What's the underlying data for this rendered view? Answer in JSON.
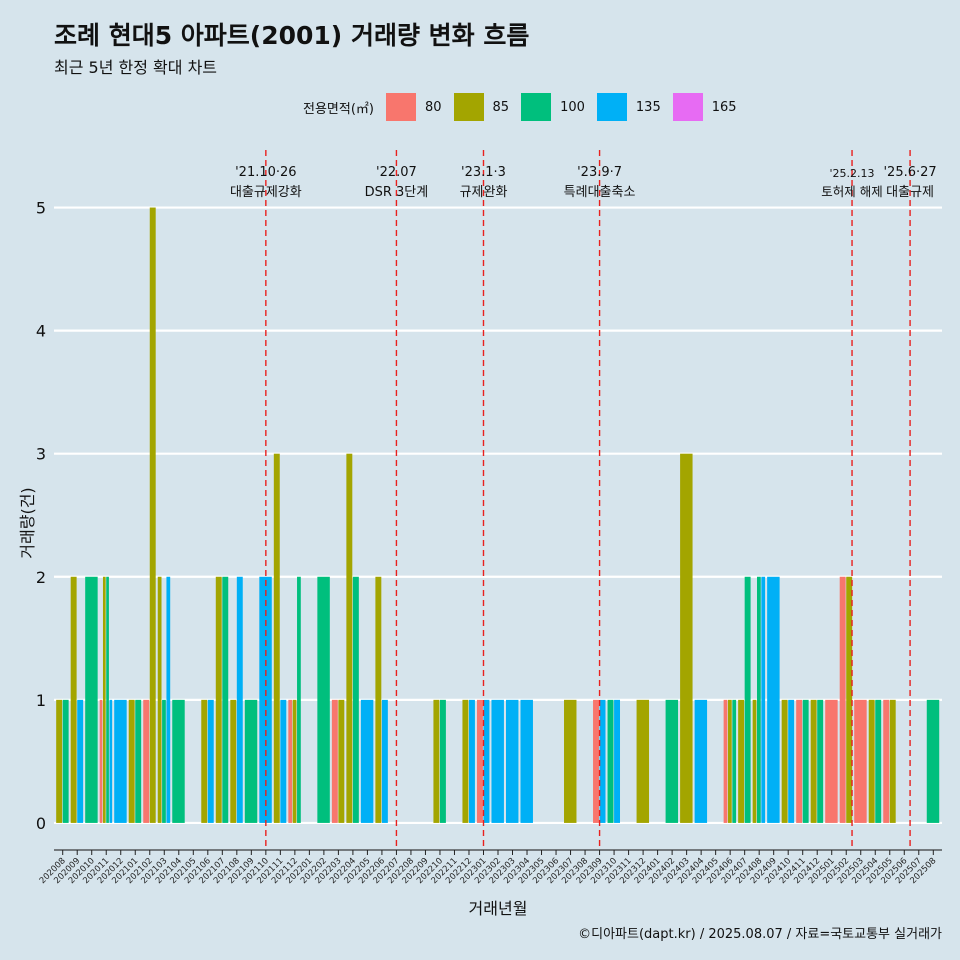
{
  "title": "조례 현대5 아파트(2001) 거래량 변화 흐름",
  "subtitle": "최근 5년 한정 확대 차트",
  "caption": "©디아파트(dapt.kr) / 2025.08.07 / 자료=국토교통부 실거래가",
  "chart_data": {
    "type": "bar",
    "stacked": false,
    "xlabel": "거래년월",
    "ylabel": "거래량(건)",
    "ylim": [
      -0.22,
      5.5
    ],
    "yticks": [
      0,
      1,
      2,
      3,
      4,
      5
    ],
    "legend_title": "전용면적(㎡)",
    "legend_position": "top",
    "categories": [
      "202008",
      "202009",
      "202010",
      "202011",
      "202012",
      "202101",
      "202102",
      "202103",
      "202104",
      "202105",
      "202106",
      "202107",
      "202108",
      "202109",
      "202110",
      "202111",
      "202112",
      "202201",
      "202202",
      "202203",
      "202204",
      "202205",
      "202206",
      "202207",
      "202208",
      "202209",
      "202210",
      "202211",
      "202212",
      "202301",
      "202302",
      "202303",
      "202304",
      "202305",
      "202306",
      "202307",
      "202308",
      "202309",
      "202310",
      "202311",
      "202312",
      "202401",
      "202402",
      "202403",
      "202404",
      "202405",
      "202406",
      "202407",
      "202408",
      "202409",
      "202410",
      "202411",
      "202412",
      "202501",
      "202502",
      "202503",
      "202504",
      "202505",
      "202506",
      "202507",
      "202508"
    ],
    "series": [
      {
        "name": "80",
        "color": "#f8766d",
        "values": [
          0,
          0,
          0,
          1,
          0,
          0,
          1,
          0,
          0,
          0,
          0,
          0,
          0,
          0,
          0,
          0,
          1,
          0,
          0,
          1,
          0,
          0,
          0,
          0,
          0,
          0,
          0,
          0,
          0,
          1,
          0,
          0,
          0,
          0,
          0,
          0,
          0,
          1,
          0,
          0,
          0,
          0,
          0,
          0,
          0,
          0,
          1,
          0,
          0,
          0,
          0,
          1,
          0,
          1,
          2,
          1,
          0,
          1,
          0,
          0,
          0
        ]
      },
      {
        "name": "85",
        "color": "#a3a500",
        "values": [
          1,
          2,
          0,
          2,
          0,
          1,
          5,
          2,
          0,
          0,
          1,
          2,
          1,
          0,
          0,
          3,
          1,
          0,
          0,
          1,
          3,
          0,
          2,
          0,
          0,
          0,
          1,
          0,
          1,
          0,
          0,
          0,
          0,
          0,
          0,
          1,
          0,
          0,
          0,
          0,
          1,
          0,
          0,
          3,
          0,
          0,
          1,
          1,
          1,
          0,
          1,
          0,
          1,
          0,
          2,
          0,
          1,
          1,
          0,
          0,
          0
        ]
      },
      {
        "name": "100",
        "color": "#00bf7d",
        "values": [
          1,
          0,
          2,
          2,
          0,
          1,
          0,
          1,
          1,
          0,
          0,
          2,
          0,
          1,
          0,
          0,
          2,
          0,
          2,
          0,
          2,
          0,
          0,
          0,
          0,
          0,
          1,
          0,
          0,
          0,
          0,
          0,
          0,
          0,
          0,
          0,
          0,
          0,
          1,
          0,
          0,
          0,
          1,
          0,
          0,
          0,
          1,
          2,
          2,
          0,
          0,
          1,
          1,
          0,
          0,
          0,
          1,
          0,
          0,
          0,
          1
        ]
      },
      {
        "name": "135",
        "color": "#00b0f6",
        "values": [
          0,
          1,
          0,
          1,
          1,
          0,
          0,
          2,
          0,
          0,
          1,
          0,
          2,
          0,
          2,
          1,
          0,
          0,
          0,
          0,
          0,
          1,
          1,
          0,
          0,
          0,
          0,
          0,
          1,
          1,
          1,
          1,
          1,
          0,
          0,
          0,
          0,
          1,
          1,
          0,
          0,
          0,
          0,
          0,
          1,
          0,
          0,
          0,
          2,
          2,
          1,
          0,
          0,
          0,
          0,
          0,
          0,
          0,
          0,
          0,
          0
        ]
      },
      {
        "name": "165",
        "color": "#e76bf3",
        "values": [
          0,
          0,
          0,
          0,
          0,
          0,
          0,
          0,
          0,
          0,
          0,
          0,
          0,
          0,
          0,
          0,
          0,
          0,
          0,
          0,
          0,
          0,
          0,
          0,
          0,
          0,
          0,
          0,
          0,
          0,
          0,
          0,
          0,
          0,
          0,
          0,
          0,
          0,
          0,
          0,
          0,
          0,
          0,
          0,
          0,
          0,
          0,
          0,
          0,
          0,
          0,
          0,
          0,
          0,
          0,
          0,
          0,
          0,
          0,
          0,
          0
        ]
      }
    ],
    "annotations": [
      {
        "at": 14.0,
        "date": "'21.10·26",
        "label": "대출규제강화",
        "small": false
      },
      {
        "at": 23.0,
        "date": "'22.07",
        "label": "DSR 3단계",
        "small": false
      },
      {
        "at": 29.0,
        "date": "'23.1·3",
        "label": "규제완화",
        "small": false
      },
      {
        "at": 37.0,
        "date": "'23.9·7",
        "label": "특례대출축소",
        "small": false
      },
      {
        "at": 54.4,
        "date": "'25.2.13",
        "label": "토허제 해제",
        "small": true
      },
      {
        "at": 58.4,
        "date": "'25.6·27",
        "label": "대출규제",
        "small": false
      }
    ],
    "grid": true
  }
}
